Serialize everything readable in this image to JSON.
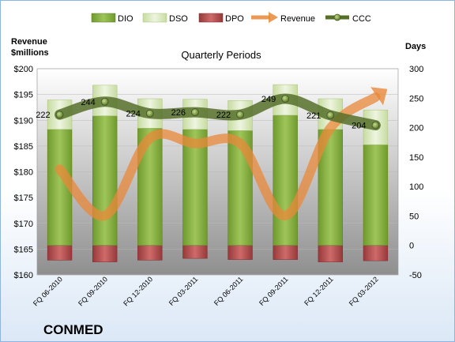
{
  "chart_data": {
    "type": "bar",
    "title": "Quarterly Periods",
    "company": "CONMED",
    "y_left_label": [
      "Revenue",
      "$millions"
    ],
    "y_right_label": "Days",
    "categories": [
      "FQ 06-2010",
      "FQ 09-2010",
      "FQ 12-2010",
      "FQ 03-2011",
      "FQ 06-2011",
      "FQ 09-2011",
      "FQ 12-2011",
      "FQ 03-2012"
    ],
    "y_left_ticks": [
      "$160",
      "$165",
      "$170",
      "$175",
      "$180",
      "$185",
      "$190",
      "$195",
      "$200"
    ],
    "y_left_range": [
      160,
      200
    ],
    "y_right_ticks": [
      "-50",
      "0",
      "50",
      "100",
      "150",
      "200",
      "250",
      "300"
    ],
    "y_right_range": [
      -50,
      300
    ],
    "legend_position": "top",
    "series": [
      {
        "name": "DIO",
        "axis": "right",
        "color": "#8db04a",
        "values": [
          197,
          220,
          199,
          197,
          195,
          221,
          197,
          171
        ]
      },
      {
        "name": "DSO",
        "axis": "right",
        "color": "#dbe8c0",
        "values": [
          50,
          52,
          50,
          51,
          51,
          52,
          52,
          59
        ]
      },
      {
        "name": "DPO",
        "axis": "right",
        "color": "#b5494a",
        "values": [
          -25,
          -28,
          -25,
          -22,
          -24,
          -24,
          -28,
          -26
        ]
      },
      {
        "name": "Revenue",
        "axis": "left",
        "color": "#e9883a",
        "values": [
          180.5,
          171.5,
          186.5,
          185.5,
          185.5,
          171.5,
          188.5,
          194.5
        ]
      },
      {
        "name": "CCC",
        "axis": "right",
        "color": "#56702a",
        "values": [
          222,
          244,
          224,
          226,
          222,
          249,
          221,
          204
        ],
        "labels": [
          "222",
          "244",
          "224",
          "226",
          "222",
          "249",
          "221",
          "204"
        ]
      }
    ]
  }
}
